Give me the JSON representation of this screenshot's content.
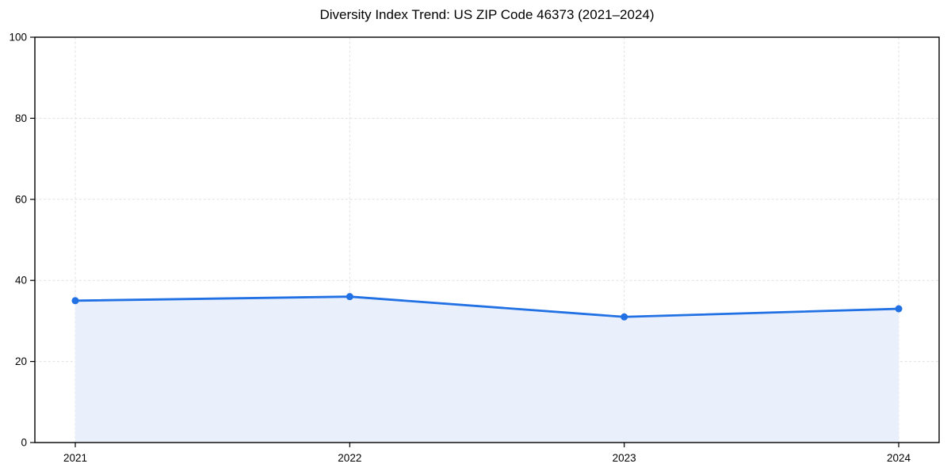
{
  "chart_data": {
    "type": "area",
    "title": "Diversity Index Trend: US ZIP Code 46373 (2021–2024)",
    "categories": [
      "2021",
      "2022",
      "2023",
      "2024"
    ],
    "series": [
      {
        "name": "Diversity Index",
        "values": [
          35,
          36,
          31,
          33
        ]
      }
    ],
    "xlabel": "",
    "ylabel": "",
    "ylim": [
      0,
      100
    ],
    "yticks": [
      0,
      20,
      40,
      60,
      80,
      100
    ],
    "grid": "dashed",
    "legend_position": "none",
    "colors": {
      "line": "#2170e4",
      "marker": "#2170e4",
      "area_fill": "#e9f0fc",
      "grid": "#e1e1e1",
      "axis": "#000000",
      "text": "#000000",
      "background": "#ffffff"
    }
  }
}
